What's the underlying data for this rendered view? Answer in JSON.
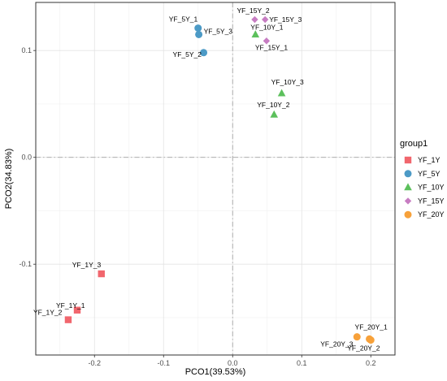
{
  "chart_data": {
    "type": "scatter",
    "xlabel": "PCO1(39.53%)",
    "ylabel": "PCO2(34.83%)",
    "xlim": [
      -0.285,
      0.235
    ],
    "ylim": [
      -0.185,
      0.145
    ],
    "xticks": [
      -0.2,
      -0.1,
      0.0,
      0.1,
      0.2
    ],
    "xtick_labels": [
      "-0.2",
      "-0.1",
      "0.0",
      "0.1",
      "0.2"
    ],
    "yticks": [
      -0.1,
      0.0,
      0.1
    ],
    "ytick_labels": [
      "-0.1",
      "0.0",
      "0.1"
    ],
    "grid": true,
    "reference_lines": {
      "x": 0,
      "y": 0,
      "style": "dash-dot"
    },
    "legend": {
      "title": "group1",
      "position": "right"
    },
    "series": [
      {
        "name": "YF_1Y",
        "color": "#f1666d",
        "marker": "square",
        "points": [
          {
            "label": "YF_1Y_1",
            "x": -0.225,
            "y": -0.143
          },
          {
            "label": "YF_1Y_2",
            "x": -0.238,
            "y": -0.152
          },
          {
            "label": "YF_1Y_3",
            "x": -0.19,
            "y": -0.109
          }
        ]
      },
      {
        "name": "YF_5Y",
        "color": "#4c9ac6",
        "marker": "circle",
        "points": [
          {
            "label": "YF_5Y_1",
            "x": -0.05,
            "y": 0.121
          },
          {
            "label": "YF_5Y_3",
            "x": -0.049,
            "y": 0.115
          },
          {
            "label": "YF_5Y_2",
            "x": -0.042,
            "y": 0.098
          }
        ]
      },
      {
        "name": "YF_10Y",
        "color": "#5cc05c",
        "marker": "triangle",
        "points": [
          {
            "label": "YF_10Y_1",
            "x": 0.033,
            "y": 0.115
          },
          {
            "label": "YF_10Y_3",
            "x": 0.071,
            "y": 0.06
          },
          {
            "label": "YF_10Y_2",
            "x": 0.06,
            "y": 0.04
          }
        ]
      },
      {
        "name": "YF_15Y",
        "color": "#c77cc2",
        "marker": "diamond",
        "points": [
          {
            "label": "YF_15Y_2",
            "x": 0.032,
            "y": 0.129
          },
          {
            "label": "YF_15Y_3",
            "x": 0.047,
            "y": 0.129
          },
          {
            "label": "YF_15Y_1",
            "x": 0.049,
            "y": 0.109
          }
        ]
      },
      {
        "name": "YF_20Y",
        "color": "#f7a13a",
        "marker": "circle",
        "points": [
          {
            "label": "YF_20Y_3",
            "x": 0.18,
            "y": -0.168
          },
          {
            "label": "YF_20Y_1",
            "x": 0.198,
            "y": -0.17
          },
          {
            "label": "YF_20Y_2",
            "x": 0.2,
            "y": -0.171
          }
        ]
      }
    ]
  }
}
